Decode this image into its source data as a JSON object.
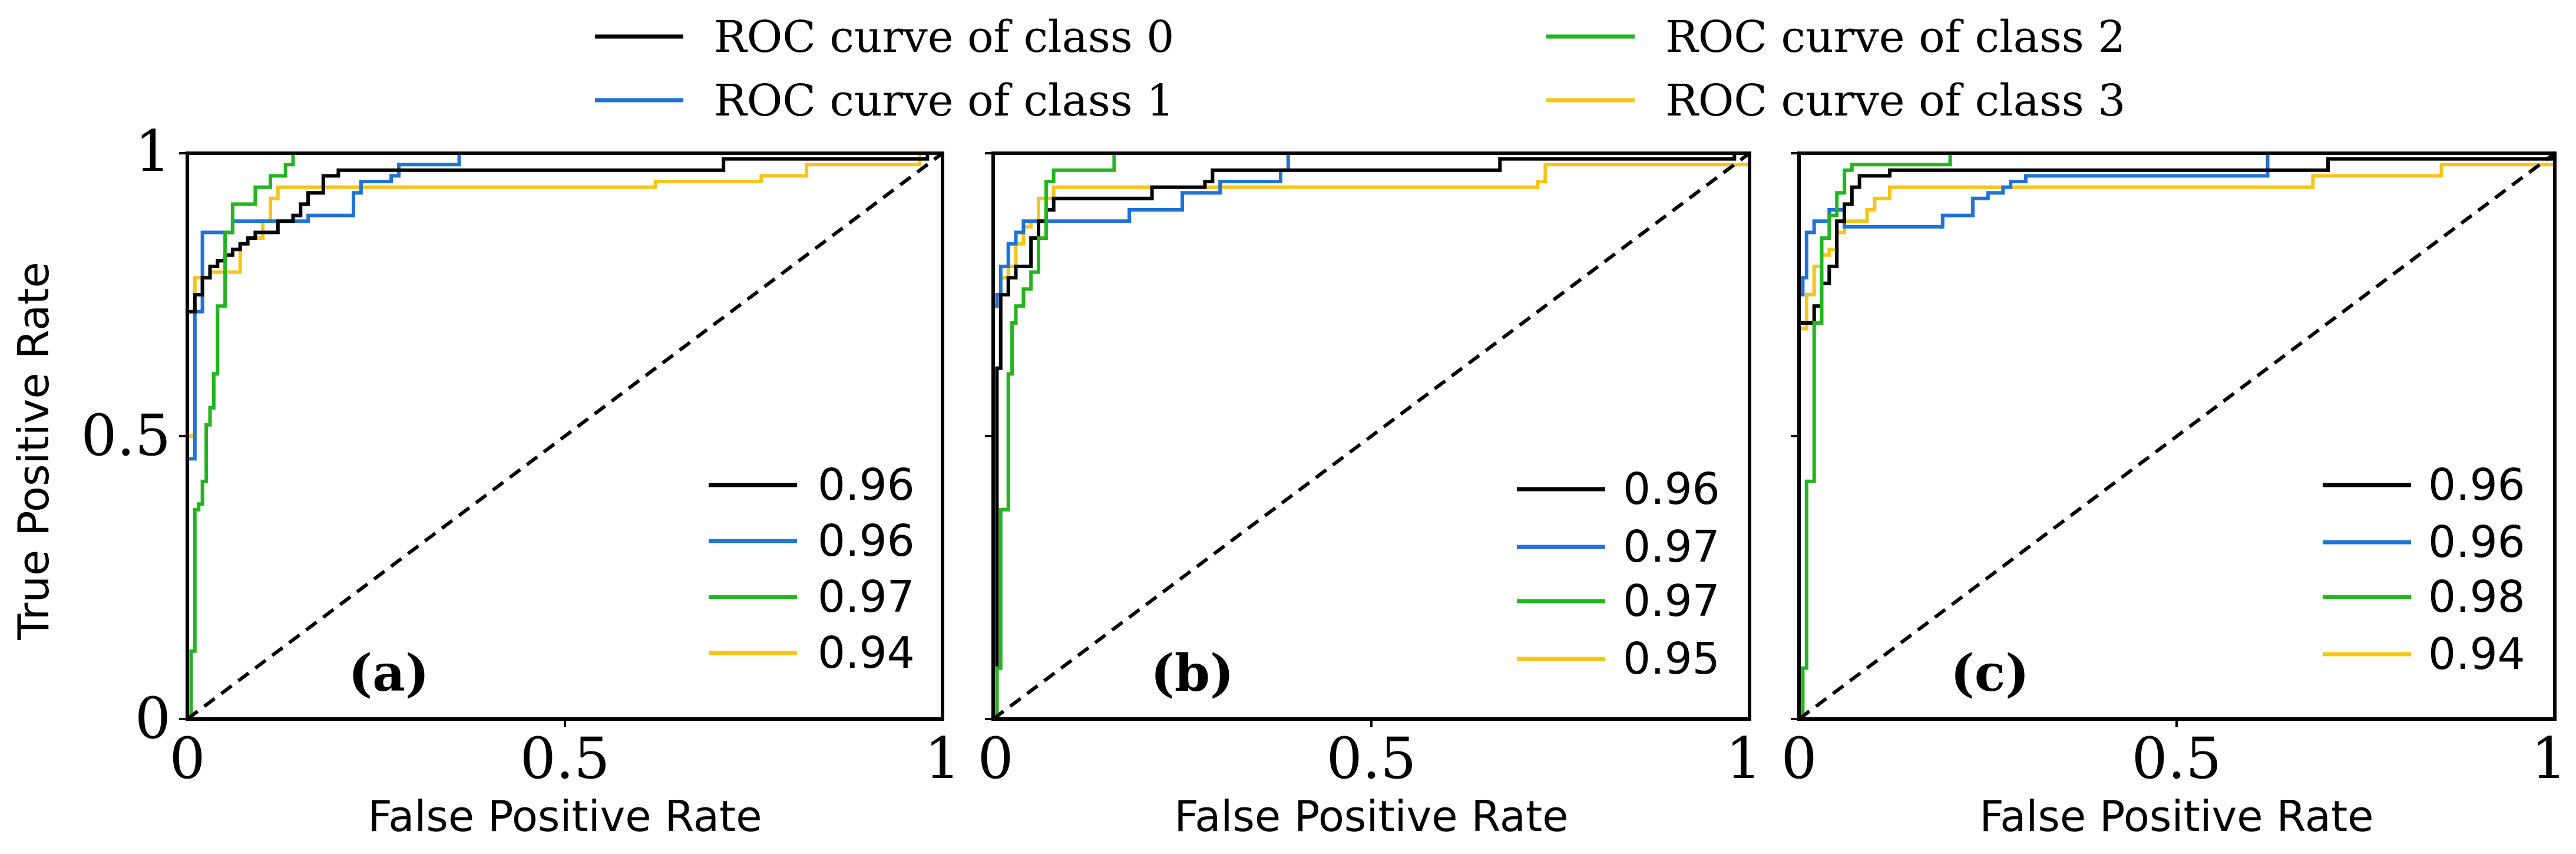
{
  "colors": {
    "class0": "#000000",
    "class1": "#1f72d6",
    "class2": "#22b51e",
    "class3": "#f6c51a",
    "diagonal": "#000000"
  },
  "legend": {
    "entries": [
      "ROC curve of class 0",
      "ROC curve of class 1",
      "ROC curve of class 2",
      "ROC curve of class 3"
    ]
  },
  "axis": {
    "xlabel": "False Positive Rate",
    "ylabel": "True Positive Rate",
    "xticks": [
      "0",
      "0.5",
      "1"
    ],
    "yticks": [
      "0",
      "0.5",
      "1"
    ]
  },
  "chart_data": [
    {
      "type": "line",
      "panel": "(a)",
      "xlabel": "False Positive Rate",
      "ylabel": "True Positive Rate",
      "xlim": [
        0,
        1
      ],
      "ylim": [
        0,
        1
      ],
      "auc": [
        "0.96",
        "0.96",
        "0.97",
        "0.94"
      ],
      "series": [
        {
          "name": "ROC curve of class 0",
          "x": [
            0,
            0,
            0.01,
            0.01,
            0.02,
            0.02,
            0.03,
            0.04,
            0.05,
            0.06,
            0.07,
            0.08,
            0.09,
            0.1,
            0.12,
            0.14,
            0.15,
            0.16,
            0.18,
            0.2,
            0.7,
            0.71,
            0.98,
            1.0
          ],
          "y": [
            0,
            0.72,
            0.72,
            0.75,
            0.75,
            0.78,
            0.8,
            0.81,
            0.82,
            0.83,
            0.84,
            0.85,
            0.86,
            0.86,
            0.88,
            0.89,
            0.91,
            0.93,
            0.96,
            0.97,
            0.97,
            0.99,
            1.0,
            1.0
          ]
        },
        {
          "name": "ROC curve of class 1",
          "x": [
            0,
            0,
            0.005,
            0.01,
            0.02,
            0.05,
            0.06,
            0.08,
            0.1,
            0.12,
            0.16,
            0.17,
            0.22,
            0.23,
            0.27,
            0.28,
            0.35,
            0.36,
            1.0
          ],
          "y": [
            0,
            0.46,
            0.46,
            0.72,
            0.86,
            0.86,
            0.88,
            0.88,
            0.88,
            0.88,
            0.89,
            0.89,
            0.93,
            0.95,
            0.96,
            0.98,
            0.98,
            1.0,
            1.0
          ]
        },
        {
          "name": "ROC curve of class 2",
          "x": [
            0,
            0.005,
            0.01,
            0.015,
            0.02,
            0.025,
            0.03,
            0.035,
            0.04,
            0.05,
            0.06,
            0.07,
            0.09,
            0.11,
            0.13,
            0.14,
            0.95,
            1.0
          ],
          "y": [
            0,
            0.12,
            0.37,
            0.38,
            0.42,
            0.52,
            0.55,
            0.61,
            0.73,
            0.86,
            0.91,
            0.91,
            0.94,
            0.96,
            0.98,
            1.0,
            1.0,
            1.0
          ]
        },
        {
          "name": "ROC curve of class 3",
          "x": [
            0,
            0,
            0.01,
            0.02,
            0.03,
            0.06,
            0.07,
            0.08,
            0.1,
            0.11,
            0.12,
            0.6,
            0.62,
            0.75,
            0.76,
            0.8,
            0.82,
            0.97,
            1.0
          ],
          "y": [
            0,
            0.5,
            0.78,
            0.78,
            0.79,
            0.79,
            0.84,
            0.85,
            0.88,
            0.92,
            0.94,
            0.94,
            0.95,
            0.95,
            0.96,
            0.96,
            0.98,
            1.0,
            1.0
          ]
        }
      ]
    },
    {
      "type": "line",
      "panel": "(b)",
      "xlabel": "False Positive Rate",
      "ylabel": "",
      "xlim": [
        0,
        1
      ],
      "ylim": [
        0,
        1
      ],
      "auc": [
        "0.96",
        "0.97",
        "0.97",
        "0.95"
      ],
      "series": [
        {
          "name": "ROC curve of class 0",
          "x": [
            0,
            0.005,
            0.01,
            0.01,
            0.02,
            0.03,
            0.05,
            0.06,
            0.07,
            0.08,
            0.2,
            0.21,
            0.28,
            0.29,
            0.66,
            0.67,
            0.98,
            1.0
          ],
          "y": [
            0,
            0.62,
            0.62,
            0.75,
            0.78,
            0.8,
            0.85,
            0.88,
            0.9,
            0.92,
            0.92,
            0.94,
            0.95,
            0.97,
            0.97,
            0.99,
            1.0,
            1.0
          ]
        },
        {
          "name": "ROC curve of class 1",
          "x": [
            0,
            0,
            0.005,
            0.01,
            0.02,
            0.03,
            0.04,
            0.05,
            0.06,
            0.1,
            0.17,
            0.18,
            0.24,
            0.25,
            0.3,
            0.38,
            0.39,
            1.0
          ],
          "y": [
            0,
            0.73,
            0.75,
            0.8,
            0.84,
            0.86,
            0.88,
            0.88,
            0.88,
            0.88,
            0.88,
            0.9,
            0.9,
            0.93,
            0.95,
            0.97,
            1.0,
            1.0
          ]
        },
        {
          "name": "ROC curve of class 2",
          "x": [
            0,
            0.005,
            0.01,
            0.015,
            0.02,
            0.025,
            0.03,
            0.04,
            0.05,
            0.06,
            0.07,
            0.08,
            0.1,
            0.15,
            0.16,
            1.0
          ],
          "y": [
            0,
            0.09,
            0.37,
            0.37,
            0.61,
            0.7,
            0.73,
            0.76,
            0.79,
            0.85,
            0.95,
            0.97,
            0.97,
            0.97,
            1.0,
            1.0
          ]
        },
        {
          "name": "ROC curve of class 3",
          "x": [
            0,
            0,
            0.01,
            0.02,
            0.03,
            0.04,
            0.05,
            0.06,
            0.08,
            0.72,
            0.73,
            0.98,
            1.0
          ],
          "y": [
            0,
            0.75,
            0.78,
            0.8,
            0.84,
            0.87,
            0.88,
            0.92,
            0.94,
            0.95,
            0.98,
            0.98,
            1.0
          ]
        }
      ]
    },
    {
      "type": "line",
      "panel": "(c)",
      "xlabel": "False Positive Rate",
      "ylabel": "",
      "xlim": [
        0,
        1
      ],
      "ylim": [
        0,
        1
      ],
      "auc": [
        "0.96",
        "0.96",
        "0.98",
        "0.94"
      ],
      "series": [
        {
          "name": "ROC curve of class 0",
          "x": [
            0,
            0,
            0.01,
            0.02,
            0.03,
            0.04,
            0.05,
            0.06,
            0.07,
            0.08,
            0.09,
            0.12,
            0.69,
            0.7,
            1.0
          ],
          "y": [
            0,
            0.7,
            0.7,
            0.73,
            0.77,
            0.8,
            0.88,
            0.91,
            0.94,
            0.96,
            0.96,
            0.97,
            0.97,
            0.99,
            1.0
          ]
        },
        {
          "name": "ROC curve of class 1",
          "x": [
            0,
            0,
            0.005,
            0.01,
            0.02,
            0.04,
            0.05,
            0.06,
            0.08,
            0.12,
            0.18,
            0.19,
            0.22,
            0.23,
            0.25,
            0.27,
            0.28,
            0.3,
            0.61,
            0.62,
            1.0
          ],
          "y": [
            0,
            0.75,
            0.78,
            0.86,
            0.88,
            0.9,
            0.9,
            0.87,
            0.87,
            0.87,
            0.87,
            0.89,
            0.89,
            0.92,
            0.93,
            0.94,
            0.95,
            0.96,
            0.96,
            1.0,
            1.0
          ]
        },
        {
          "name": "ROC curve of class 2",
          "x": [
            0,
            0.005,
            0.01,
            0.015,
            0.02,
            0.03,
            0.04,
            0.05,
            0.06,
            0.07,
            0.08,
            0.19,
            0.2,
            1.0
          ],
          "y": [
            0,
            0.09,
            0.42,
            0.42,
            0.7,
            0.85,
            0.89,
            0.93,
            0.97,
            0.98,
            0.98,
            0.98,
            1.0,
            1.0
          ]
        },
        {
          "name": "ROC curve of class 3",
          "x": [
            0,
            0,
            0.01,
            0.02,
            0.03,
            0.04,
            0.05,
            0.06,
            0.07,
            0.09,
            0.1,
            0.12,
            0.67,
            0.68,
            0.84,
            0.85,
            0.98,
            1.0
          ],
          "y": [
            0,
            0.69,
            0.75,
            0.8,
            0.82,
            0.83,
            0.86,
            0.88,
            0.88,
            0.9,
            0.92,
            0.94,
            0.94,
            0.96,
            0.96,
            0.98,
            0.98,
            1.0
          ]
        }
      ]
    }
  ]
}
